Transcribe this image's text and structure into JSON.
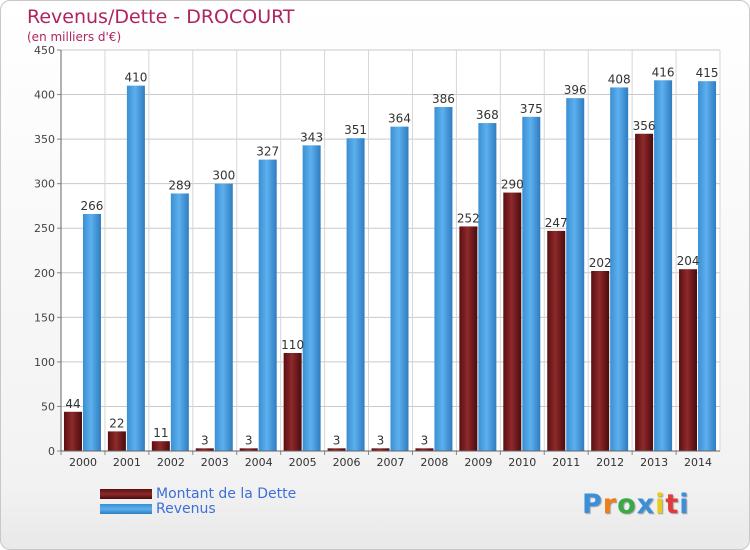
{
  "header": {
    "title": "Revenus/Dette - DROCOURT",
    "subtitle": "(en milliers d'€)"
  },
  "legend": {
    "items": [
      {
        "label": "Montant de la Dette",
        "color": "#7a1f1f"
      },
      {
        "label": "Revenus",
        "color": "#4aa0e2"
      }
    ]
  },
  "logo": {
    "text": "Proxiti",
    "colors": [
      "#3a8fd8",
      "#ef7d1a",
      "#39a845",
      "#3a8fd8",
      "#e6cc1e",
      "#e03a3a",
      "#3a8fd8"
    ]
  },
  "chart_data": {
    "type": "bar",
    "categories": [
      "2000",
      "2001",
      "2002",
      "2003",
      "2004",
      "2005",
      "2006",
      "2007",
      "2008",
      "2009",
      "2010",
      "2011",
      "2012",
      "2013",
      "2014"
    ],
    "series": [
      {
        "name": "Montant de la Dette",
        "color": "#7a1f1f",
        "values": [
          44,
          22,
          11,
          3,
          3,
          110,
          3,
          3,
          3,
          252,
          290,
          247,
          202,
          356,
          204
        ]
      },
      {
        "name": "Revenus",
        "color": "#4aa0e2",
        "values": [
          266,
          410,
          289,
          300,
          327,
          343,
          351,
          364,
          386,
          368,
          375,
          396,
          408,
          416,
          415
        ]
      }
    ],
    "ylim": [
      0,
      450
    ],
    "yticks": [
      0,
      50,
      100,
      150,
      200,
      250,
      300,
      350,
      400,
      450
    ],
    "grid": true,
    "legend_position": "bottom-left"
  }
}
